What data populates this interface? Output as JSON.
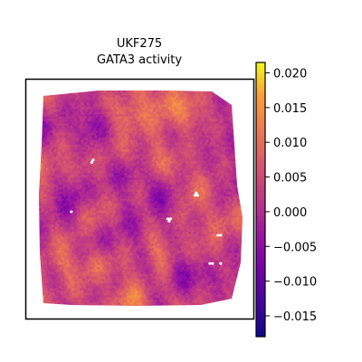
{
  "chart_data": {
    "type": "heatmap",
    "title": [
      "UKF275",
      "GATA3 activity"
    ],
    "colormap": "plasma",
    "colorbar": {
      "min": -0.018,
      "max": 0.0215,
      "ticks": [
        {
          "value": 0.02,
          "label": "0.020"
        },
        {
          "value": 0.015,
          "label": "0.015"
        },
        {
          "value": 0.01,
          "label": "0.010"
        },
        {
          "value": 0.005,
          "label": "0.005"
        },
        {
          "value": 0.0,
          "label": "0.000"
        },
        {
          "value": -0.005,
          "label": "−0.005"
        },
        {
          "value": -0.01,
          "label": "−0.010"
        },
        {
          "value": -0.015,
          "label": "−0.015"
        }
      ]
    },
    "hotspots": [
      {
        "x": 0.45,
        "y": 0.12,
        "strength": 1.0
      },
      {
        "x": 0.62,
        "y": 0.05,
        "strength": 0.9
      },
      {
        "x": 0.72,
        "y": 0.12,
        "strength": 0.7
      },
      {
        "x": 0.05,
        "y": 0.35,
        "strength": 0.7
      },
      {
        "x": 0.55,
        "y": 0.32,
        "strength": 0.6
      },
      {
        "x": 0.25,
        "y": 0.55,
        "strength": 0.5
      },
      {
        "x": 0.78,
        "y": 0.45,
        "strength": 0.6
      },
      {
        "x": 0.6,
        "y": 0.75,
        "strength": 0.55
      },
      {
        "x": 0.45,
        "y": 0.97,
        "strength": 0.8
      },
      {
        "x": 0.3,
        "y": 0.8,
        "strength": 0.6
      },
      {
        "x": 0.9,
        "y": 0.6,
        "strength": 0.55
      },
      {
        "x": 0.12,
        "y": 0.8,
        "strength": 0.5
      }
    ],
    "coldspots": [
      {
        "x": 0.28,
        "y": 0.15,
        "strength": 0.9
      },
      {
        "x": 0.08,
        "y": 0.18,
        "strength": 0.7
      },
      {
        "x": 0.2,
        "y": 0.48,
        "strength": 0.9
      },
      {
        "x": 0.45,
        "y": 0.4,
        "strength": 0.8
      },
      {
        "x": 0.62,
        "y": 0.5,
        "strength": 0.7
      },
      {
        "x": 0.95,
        "y": 0.42,
        "strength": 0.8
      },
      {
        "x": 0.7,
        "y": 0.85,
        "strength": 0.9
      },
      {
        "x": 0.9,
        "y": 0.88,
        "strength": 0.7
      },
      {
        "x": 0.35,
        "y": 0.7,
        "strength": 0.6
      },
      {
        "x": 0.08,
        "y": 0.55,
        "strength": 0.6
      },
      {
        "x": 0.85,
        "y": 0.22,
        "strength": 0.5
      },
      {
        "x": 0.5,
        "y": 0.62,
        "strength": 0.5
      }
    ],
    "missing_spots": [
      {
        "x": 0.27,
        "y": 0.33
      },
      {
        "x": 0.17,
        "y": 0.56
      },
      {
        "x": 0.77,
        "y": 0.48
      },
      {
        "x": 0.64,
        "y": 0.6
      },
      {
        "x": 0.88,
        "y": 0.67
      },
      {
        "x": 0.84,
        "y": 0.8
      },
      {
        "x": 0.89,
        "y": 0.8
      }
    ]
  }
}
